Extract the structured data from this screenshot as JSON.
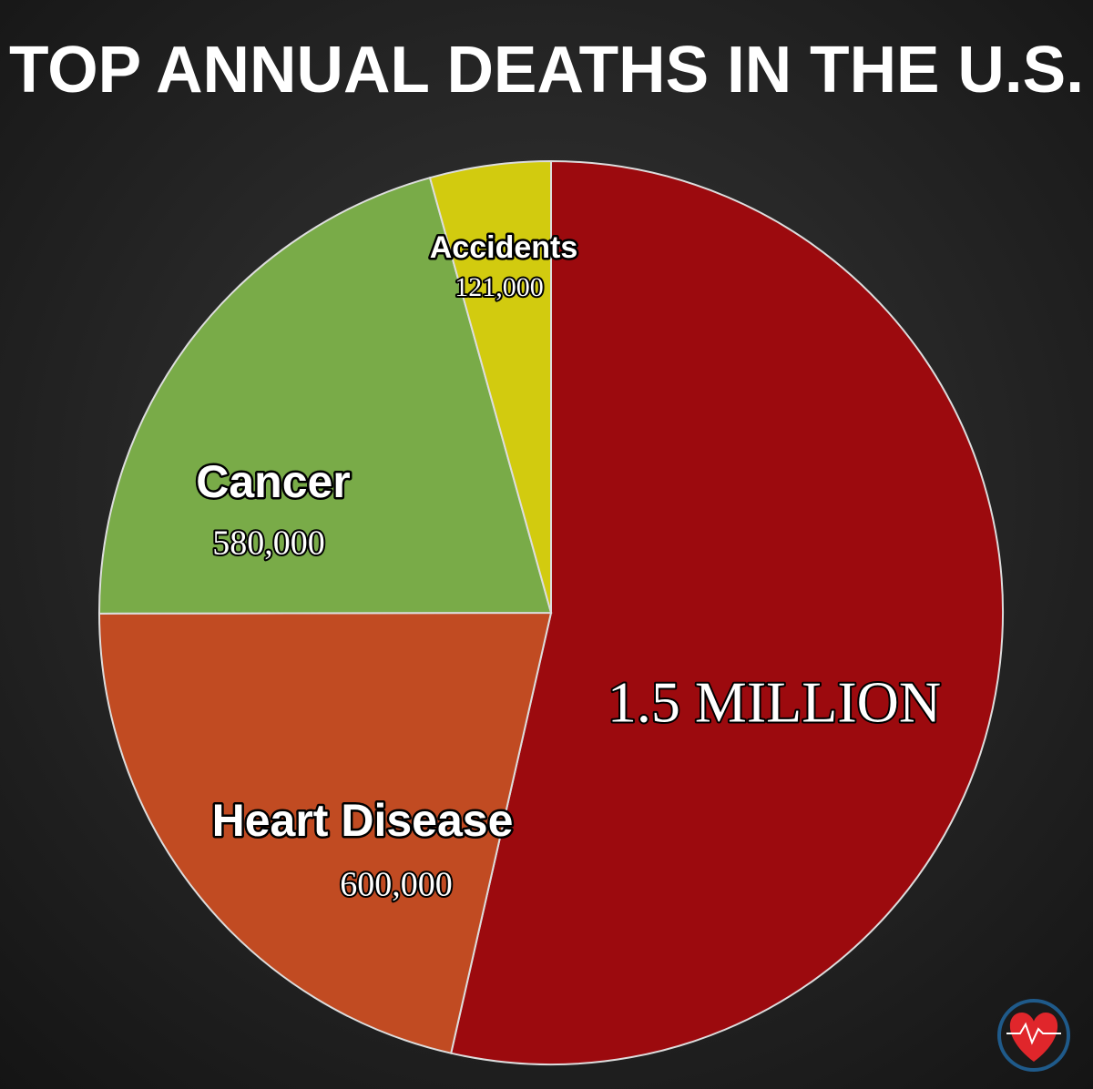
{
  "chart_data": {
    "type": "pie",
    "title": "TOP ANNUAL DEATHS IN THE U.S.",
    "categories": [
      null,
      "Heart Disease",
      "Cancer",
      "Accidents"
    ],
    "values": [
      1500000,
      600000,
      580000,
      121000
    ],
    "value_labels": [
      "1.5 MILLION",
      "600,000",
      "580,000",
      "121,000"
    ],
    "colors": [
      "#9c0a0e",
      "#c14b22",
      "#79ab48",
      "#d2cb0f"
    ]
  }
}
